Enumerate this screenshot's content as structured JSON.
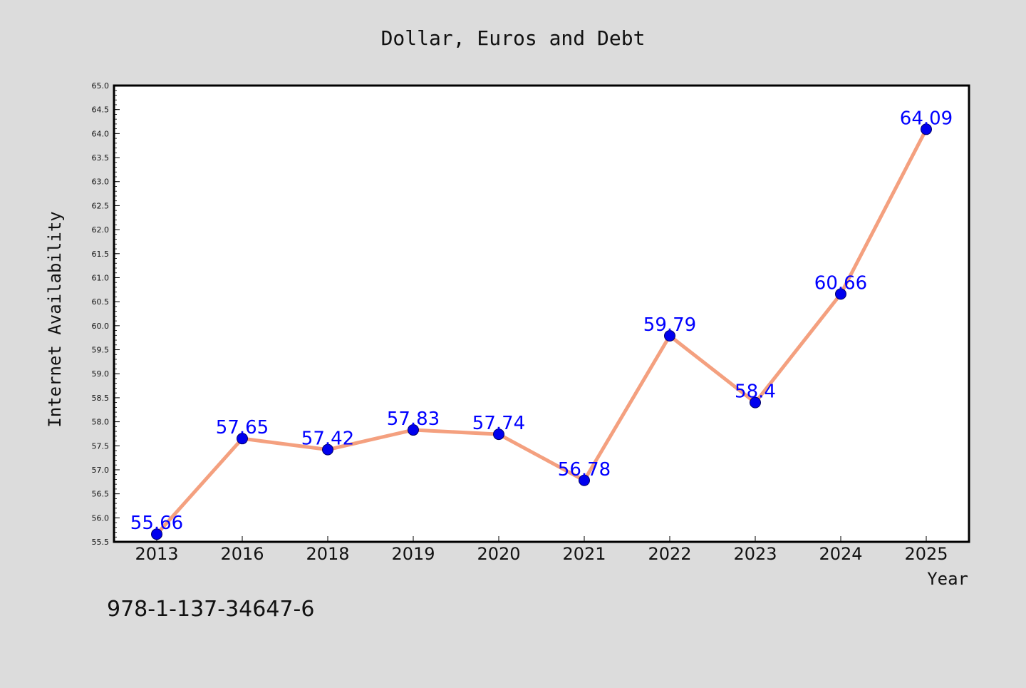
{
  "chart_data": {
    "type": "line",
    "title": "Dollar, Euros and Debt",
    "xlabel": "Year",
    "ylabel": "Internet Availability",
    "categories": [
      "2013",
      "2016",
      "2018",
      "2019",
      "2020",
      "2021",
      "2022",
      "2023",
      "2024",
      "2025"
    ],
    "series": [
      {
        "values": [
          55.66,
          57.65,
          57.42,
          57.83,
          57.74,
          56.78,
          59.79,
          58.4,
          60.66,
          64.09
        ],
        "labels": [
          "55.66",
          "57.65",
          "57.42",
          "57.83",
          "57.74",
          "56.78",
          "59.79",
          "58.4",
          "60.66",
          "64.09"
        ]
      }
    ],
    "ylim": [
      55.5,
      65.0
    ],
    "yticks": [
      "55.5",
      "56.0",
      "56.5",
      "57.0",
      "57.5",
      "58.0",
      "58.5",
      "59.0",
      "59.5",
      "60.0",
      "60.5",
      "61.0",
      "61.5",
      "62.0",
      "62.5",
      "63.0",
      "63.5",
      "64.0",
      "64.5",
      "65.0"
    ],
    "grid": false,
    "legend": "none",
    "colors": {
      "line": "#f4a07f",
      "marker": "#0000ee",
      "marker_edge": "#000066",
      "data_label": "#0000ff",
      "plot_background": "#ffffff",
      "figure_background": "#dcdcdc"
    }
  },
  "annotation": {
    "isbn": "978-1-137-34647-6"
  }
}
